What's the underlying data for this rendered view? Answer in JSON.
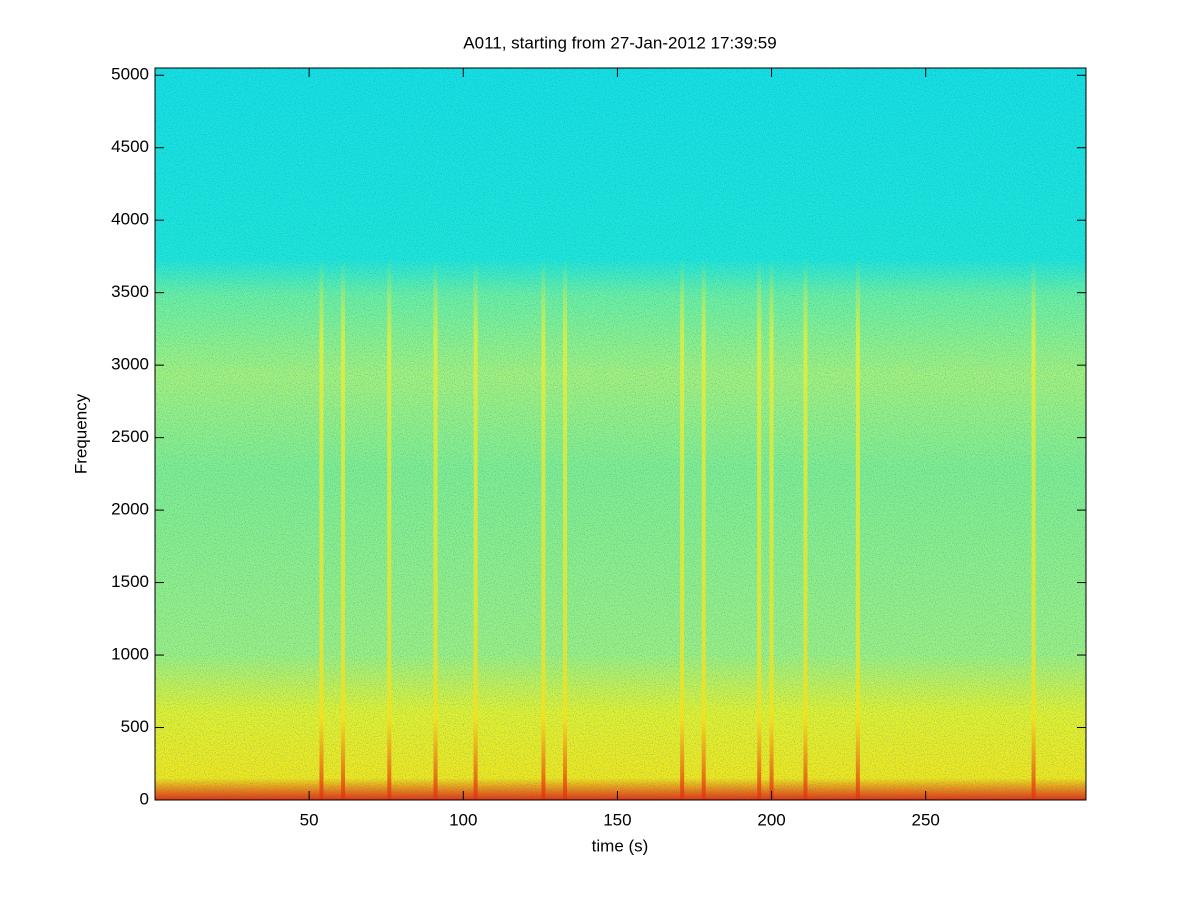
{
  "chart_data": {
    "type": "spectrogram",
    "title": "A011, starting from 27-Jan-2012 17:39:59",
    "x_label": "time (s)",
    "y_label": "Frequency",
    "xlim": [
      0,
      302
    ],
    "ylim": [
      0,
      5050
    ],
    "xticks": [
      50,
      100,
      150,
      200,
      250
    ],
    "yticks": [
      0,
      500,
      1000,
      1500,
      2000,
      2500,
      3000,
      3500,
      4000,
      4500,
      5000
    ],
    "x": [
      54,
      61,
      76,
      91,
      104,
      126,
      133,
      171,
      178,
      196,
      200,
      211,
      228,
      285
    ]
  }
}
